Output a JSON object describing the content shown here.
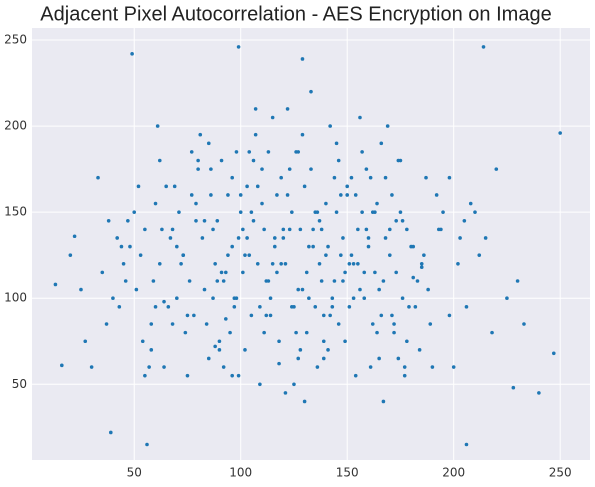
{
  "chart_data": {
    "type": "scatter",
    "title": "Adjacent Pixel Autocorrelation - AES Encryption on Image",
    "color": "#1f77b4",
    "x": [
      250,
      49,
      99,
      214,
      129,
      56,
      206,
      39,
      16,
      13,
      247,
      233,
      240,
      228,
      22,
      60,
      72,
      85,
      93,
      101,
      110,
      118,
      127,
      135,
      142,
      151,
      160,
      168,
      177,
      185,
      64,
      77,
      88,
      96,
      104,
      113,
      121,
      130,
      139,
      147,
      156,
      164,
      173,
      181,
      190,
      55,
      68,
      80,
      91,
      99,
      107,
      116,
      124,
      133,
      141,
      150,
      158,
      167,
      175,
      194,
      58,
      70,
      83,
      94,
      102,
      111,
      119,
      128,
      136,
      145,
      153,
      162,
      170,
      179,
      198,
      45,
      62,
      75,
      87,
      97,
      105,
      114,
      122,
      131,
      139,
      148,
      157,
      165,
      174,
      202,
      52,
      66,
      79,
      90,
      98,
      108,
      117,
      125,
      134,
      143,
      152,
      161,
      169,
      178,
      206,
      40,
      57,
      73,
      86,
      95,
      103,
      112,
      120,
      129,
      138,
      146,
      155,
      163,
      172,
      210,
      48,
      63,
      78,
      89,
      100,
      109,
      115,
      126,
      137,
      144,
      154,
      159,
      171,
      180,
      188,
      35,
      54,
      69,
      82,
      92,
      106,
      123,
      132,
      140,
      149,
      166,
      176,
      184,
      192,
      215,
      43,
      61,
      76,
      84,
      96,
      104,
      118,
      127,
      135,
      145,
      153,
      162,
      174,
      183,
      200,
      30,
      50,
      67,
      81,
      93,
      102,
      110,
      121,
      130,
      141,
      150,
      158,
      168,
      186,
      220,
      38,
      59,
      74,
      88,
      99,
      107,
      114,
      124,
      133,
      142,
      156,
      164,
      173,
      189,
      205,
      46,
      65,
      71,
      85,
      97,
      111,
      119,
      128,
      138,
      147,
      155,
      167,
      177,
      195,
      225,
      27,
      53,
      70,
      83,
      91,
      101,
      113,
      122,
      131,
      140,
      149,
      160,
      171,
      182,
      212,
      42,
      58,
      77,
      87,
      94,
      105,
      116,
      125,
      136,
      146,
      157,
      165,
      176,
      187,
      198,
      33,
      51,
      64,
      79,
      90,
      100,
      109,
      120,
      129,
      139,
      151,
      161,
      170,
      181,
      208,
      20,
      47,
      62,
      75,
      86,
      98,
      108,
      117,
      126,
      134,
      143,
      152,
      163,
      178,
      230,
      37,
      55,
      68,
      80,
      92,
      103,
      112,
      123,
      132,
      144,
      154,
      166,
      175,
      193,
      218,
      25,
      44,
      60,
      73,
      89,
      96,
      106,
      115,
      127,
      137,
      148,
      159,
      172,
      185,
      203
    ],
    "values": [
      196,
      242,
      246,
      246,
      239,
      15,
      15,
      22,
      61,
      108,
      68,
      85,
      45,
      48,
      136,
      155,
      120,
      190,
      88,
      140,
      175,
      62,
      105,
      150,
      200,
      95,
      130,
      170,
      55,
      118,
      98,
      160,
      72,
      130,
      185,
      110,
      45,
      165,
      90,
      125,
      205,
      80,
      145,
      112,
      60,
      140,
      85,
      175,
      115,
      55,
      195,
      135,
      95,
      220,
      70,
      160,
      115,
      40,
      180,
      140,
      70,
      130,
      105,
      160,
      125,
      80,
      170,
      140,
      60,
      190,
      100,
      150,
      125,
      95,
      170,
      120,
      180,
      55,
      140,
      100,
      150,
      90,
      210,
      115,
      75,
      135,
      185,
      105,
      65,
      120,
      165,
      95,
      145,
      70,
      185,
      120,
      160,
      50,
      130,
      100,
      170,
      60,
      200,
      140,
      95,
      100,
      60,
      125,
      175,
      80,
      165,
      110,
      135,
      195,
      140,
      85,
      120,
      150,
      80,
      150,
      130,
      140,
      90,
      110,
      150,
      95,
      205,
      80,
      120,
      170,
      55,
      175,
      90,
      130,
      105,
      115,
      75,
      165,
      135,
      60,
      180,
      140,
      100,
      155,
      115,
      190,
      145,
      70,
      160,
      135,
      95,
      200,
      110,
      85,
      170,
      125,
      75,
      185,
      95,
      150,
      120,
      85,
      180,
      110,
      60,
      60,
      150,
      135,
      195,
      115,
      70,
      155,
      120,
      40,
      130,
      165,
      100,
      135,
      125,
      175,
      145,
      110,
      80,
      120,
      135,
      210,
      100,
      150,
      175,
      90,
      105,
      155,
      115,
      85,
      145,
      110,
      165,
      150,
      65,
      95,
      140,
      120,
      70,
      110,
      160,
      140,
      110,
      60,
      150,
      100,
      75,
      125,
      100,
      145,
      180,
      115,
      185,
      160,
      80,
      125,
      75,
      135,
      160,
      95,
      125,
      135,
      85,
      185,
      100,
      125,
      90,
      130,
      95,
      150,
      180,
      150,
      65,
      100,
      170,
      90,
      170,
      105,
      60,
      155,
      75,
      160,
      50,
      140,
      105,
      65,
      120,
      170,
      140,
      130,
      155,
      125,
      145,
      120,
      90,
      160,
      100,
      165,
      115,
      185,
      140,
      95,
      125,
      115,
      75,
      110,
      85,
      55,
      140,
      180,
      110,
      135,
      90,
      175,
      130,
      110,
      160,
      90,
      150,
      140,
      80,
      105,
      130,
      95,
      125,
      145,
      55,
      145,
      120,
      65,
      145,
      110,
      140,
      85,
      120,
      135
    ],
    "xlim": [
      2,
      264
    ],
    "ylim": [
      6,
      257
    ],
    "xticks": [
      50,
      100,
      150,
      200,
      250
    ],
    "yticks": [
      50,
      100,
      150,
      200,
      250
    ],
    "grid": true
  }
}
